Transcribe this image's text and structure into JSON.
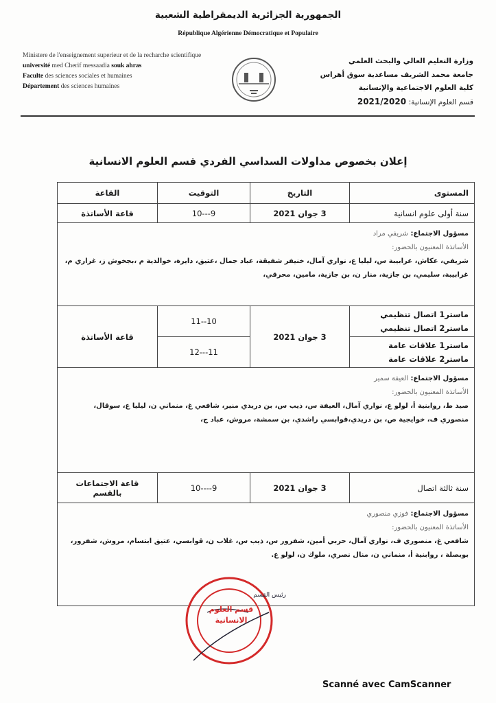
{
  "header": {
    "republic_ar": "الجمهورية الجزائرية الديمقراطية الشعبية",
    "republic_fr": "République Algérienne Démocratique et Populaire",
    "left_fr": [
      {
        "bold": "",
        "text": "Ministere de l'enseignement superieur et de la recharche scientifique"
      },
      {
        "bold": "université",
        "text": " med  Cherif messaadia ",
        "bold2": "souk ahras"
      },
      {
        "bold": "Faculte",
        "text": " des sciences sociales et humaines"
      },
      {
        "bold": "Département",
        "text": " des sciences humaines"
      }
    ],
    "right_ar": [
      "وزارة التعليم العالي والبحث العلمي",
      "جامعة محمد الشريف مساعدية سوق أهراس",
      "كلية العلوم الاجتماعية والإنسانية"
    ],
    "dept_ar": "قسم العلوم الإنسانية:",
    "year": "2021/2020"
  },
  "title": "إعلان بخصوص مداولات السداسي الفردي قسم العلوم الانسانية",
  "table": {
    "headers": [
      "المستوى",
      "التاريخ",
      "التوقيت",
      "القاعة"
    ],
    "sessions": [
      {
        "levels": [
          "سنة أولى علوم انسانية"
        ],
        "date": "3 جوان 2021",
        "times": [
          "9---10"
        ],
        "room": "قاعة الأساتذة",
        "responsible_label": "مسؤول الاجتماع:",
        "responsible": "شريفي مراد",
        "attendees_label": "الأساتذة المعنيون بالحضور:",
        "attendees": "شريفي، عكاش، عرابيبة س، ليليا ع، نواري آمال، خنيفر شفيقة، عباد جمال ،عتيق، دايرة، خوالدية م ،بجخوش ز، غراري م، غرابيبة، سليمي، بن جازية، منار ن، بن جازية، مامين، محرقي،"
      },
      {
        "levels": [
          "ماستر1 اتصال تنظيمي",
          "ماستر2 اتصال تنظيمي",
          "ماستر1 علاقات عامة",
          "ماستر2 علاقات عامة"
        ],
        "date": "3 جوان 2021",
        "times": [
          "10--11",
          "11---12"
        ],
        "room": "قاعة الأساتذة",
        "responsible_label": "مسؤول الاجتماع:",
        "responsible": "العيفة سمير",
        "attendees_label": "الأساتذة المعنيون بالحضور:",
        "attendees": "صيد ط، روابنية أ، لولو ع، نواري آمال، العيفة س، ذيب س، بن دريدي منير، شافعي غ، منماني ن، ليليا ع، سوقال، منصوري ف، خوايجية ص، بن دريدي،قوابسي راشدي، بن سمشة، مروش، عباد ج،"
      },
      {
        "levels": [
          "سنة ثالثة اتصال"
        ],
        "date": "3 جوان 2021",
        "times": [
          "9----10"
        ],
        "room": "قاعة الاجتماعات بالقسم",
        "responsible_label": "مسؤول الاجتماع:",
        "responsible": "فوزي منصوري",
        "attendees_label": "الأساتذة المعنيون بالحضور:",
        "attendees": "شافعي غ، منصوري ف، نواري آمال، حربي أمين، شفرور س، ذيب س، غلاب ن، قوابسي، عتيق ابتسام، مروش، شفرور، بوبصلة ، روابنية أ، منماني ن، منال نصري، ملوك ن، لولو ع."
      }
    ]
  },
  "stamp": {
    "text": "قسم العلوم الانسانية",
    "signature_label": "رئيس القسم",
    "color": "#d42a2a"
  },
  "footer": "Scanné avec CamScanner"
}
